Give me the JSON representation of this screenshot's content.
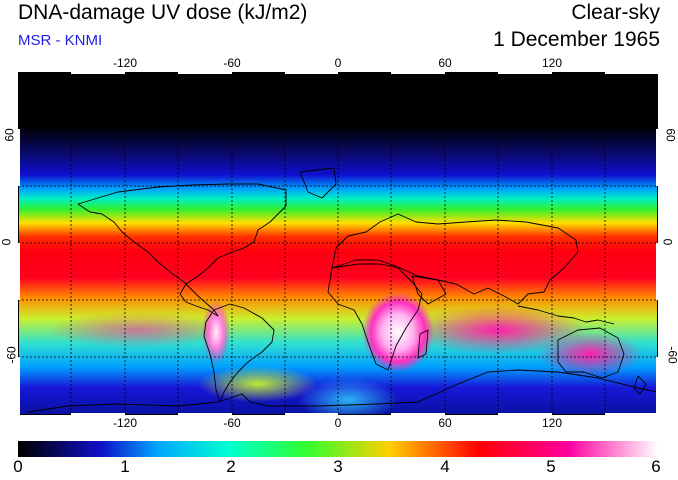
{
  "header": {
    "title": "DNA-damage UV dose (kJ/m2)",
    "subtitle": "MSR - KNMI",
    "mode": "Clear-sky",
    "date": "1 December 1965"
  },
  "colors": {
    "subtitle": "#1f1fe0",
    "gridline": "#000000",
    "coastline": "#000000",
    "scale_stops": [
      "#000000",
      "#1010c8",
      "#00a8ff",
      "#00ffd0",
      "#30ff30",
      "#ffd000",
      "#ff0000",
      "#ff00a0",
      "#ffffff"
    ]
  },
  "map": {
    "projection": "equirectangular",
    "lon_range": [
      -180,
      180
    ],
    "lat_range": [
      -90,
      90
    ],
    "grid_step_lon": 30,
    "grid_step_lat": 30,
    "lon_tick_labels": [
      "-120",
      "-60",
      "0",
      "60",
      "120"
    ],
    "lat_tick_labels": [
      "60",
      "0",
      "-60"
    ]
  },
  "colorbar": {
    "min": 0,
    "max": 6,
    "tick_labels": [
      "0",
      "1",
      "2",
      "3",
      "4",
      "5",
      "6"
    ]
  }
}
